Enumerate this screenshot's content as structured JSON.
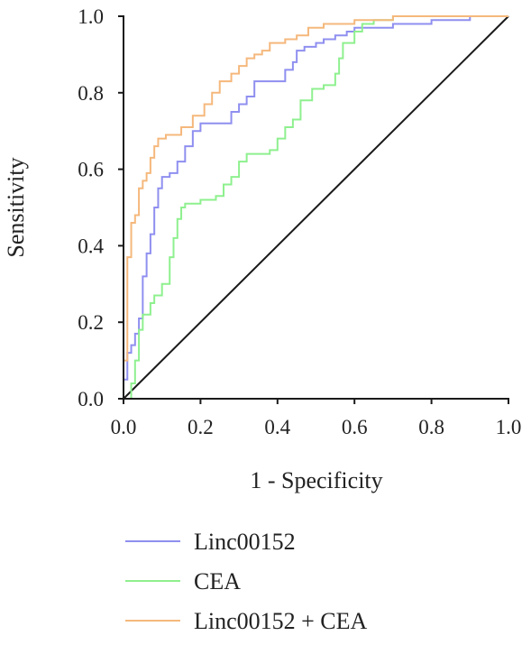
{
  "chart_data": {
    "type": "line",
    "title": "",
    "xlabel": "1 - Specificity",
    "ylabel": "Sensitivity",
    "xlim": [
      0,
      1
    ],
    "ylim": [
      0,
      1
    ],
    "x_ticks": [
      "0.0",
      "0.2",
      "0.4",
      "0.6",
      "0.8",
      "1.0"
    ],
    "y_ticks": [
      "0.0",
      "0.2",
      "0.4",
      "0.6",
      "0.8",
      "1.0"
    ],
    "grid": false,
    "legend_position": "bottom",
    "reference_line": [
      [
        0,
        0
      ],
      [
        1,
        1
      ]
    ],
    "series": [
      {
        "name": "Linc00152",
        "color": "#8f8ff0",
        "points": [
          [
            0,
            0
          ],
          [
            0,
            0.05
          ],
          [
            0.01,
            0.08
          ],
          [
            0.01,
            0.12
          ],
          [
            0.02,
            0.14
          ],
          [
            0.03,
            0.17
          ],
          [
            0.04,
            0.21
          ],
          [
            0.05,
            0.25
          ],
          [
            0.05,
            0.32
          ],
          [
            0.06,
            0.38
          ],
          [
            0.07,
            0.43
          ],
          [
            0.08,
            0.5
          ],
          [
            0.09,
            0.55
          ],
          [
            0.1,
            0.58
          ],
          [
            0.12,
            0.59
          ],
          [
            0.14,
            0.62
          ],
          [
            0.16,
            0.66
          ],
          [
            0.18,
            0.7
          ],
          [
            0.2,
            0.72
          ],
          [
            0.25,
            0.72
          ],
          [
            0.28,
            0.75
          ],
          [
            0.3,
            0.77
          ],
          [
            0.32,
            0.79
          ],
          [
            0.34,
            0.83
          ],
          [
            0.4,
            0.83
          ],
          [
            0.42,
            0.86
          ],
          [
            0.44,
            0.88
          ],
          [
            0.45,
            0.91
          ],
          [
            0.47,
            0.92
          ],
          [
            0.5,
            0.93
          ],
          [
            0.52,
            0.94
          ],
          [
            0.55,
            0.95
          ],
          [
            0.58,
            0.96
          ],
          [
            0.6,
            0.97
          ],
          [
            0.7,
            0.98
          ],
          [
            0.8,
            0.99
          ],
          [
            0.9,
            1.0
          ],
          [
            1,
            1
          ]
        ]
      },
      {
        "name": "CEA",
        "color": "#8ef08e",
        "points": [
          [
            0,
            0
          ],
          [
            0.02,
            0.04
          ],
          [
            0.03,
            0.1
          ],
          [
            0.04,
            0.18
          ],
          [
            0.05,
            0.22
          ],
          [
            0.07,
            0.25
          ],
          [
            0.08,
            0.27
          ],
          [
            0.1,
            0.3
          ],
          [
            0.12,
            0.37
          ],
          [
            0.13,
            0.42
          ],
          [
            0.14,
            0.47
          ],
          [
            0.15,
            0.5
          ],
          [
            0.16,
            0.51
          ],
          [
            0.2,
            0.52
          ],
          [
            0.24,
            0.53
          ],
          [
            0.26,
            0.56
          ],
          [
            0.28,
            0.58
          ],
          [
            0.3,
            0.62
          ],
          [
            0.32,
            0.64
          ],
          [
            0.38,
            0.65
          ],
          [
            0.4,
            0.68
          ],
          [
            0.42,
            0.71
          ],
          [
            0.44,
            0.73
          ],
          [
            0.46,
            0.78
          ],
          [
            0.49,
            0.81
          ],
          [
            0.52,
            0.82
          ],
          [
            0.55,
            0.85
          ],
          [
            0.56,
            0.89
          ],
          [
            0.57,
            0.93
          ],
          [
            0.6,
            0.96
          ],
          [
            0.62,
            0.98
          ],
          [
            0.65,
            0.99
          ],
          [
            0.7,
            1.0
          ],
          [
            1,
            1
          ]
        ]
      },
      {
        "name": "Linc00152 + CEA",
        "color": "#f5b87c",
        "points": [
          [
            0,
            0
          ],
          [
            0,
            0.1
          ],
          [
            0.01,
            0.2
          ],
          [
            0.01,
            0.37
          ],
          [
            0.02,
            0.46
          ],
          [
            0.03,
            0.48
          ],
          [
            0.04,
            0.55
          ],
          [
            0.05,
            0.57
          ],
          [
            0.06,
            0.59
          ],
          [
            0.07,
            0.63
          ],
          [
            0.08,
            0.66
          ],
          [
            0.09,
            0.68
          ],
          [
            0.11,
            0.69
          ],
          [
            0.15,
            0.71
          ],
          [
            0.18,
            0.74
          ],
          [
            0.21,
            0.77
          ],
          [
            0.23,
            0.8
          ],
          [
            0.25,
            0.83
          ],
          [
            0.28,
            0.85
          ],
          [
            0.3,
            0.87
          ],
          [
            0.32,
            0.89
          ],
          [
            0.34,
            0.9
          ],
          [
            0.36,
            0.91
          ],
          [
            0.38,
            0.93
          ],
          [
            0.42,
            0.94
          ],
          [
            0.45,
            0.95
          ],
          [
            0.48,
            0.97
          ],
          [
            0.52,
            0.98
          ],
          [
            0.6,
            0.99
          ],
          [
            0.7,
            1.0
          ],
          [
            1,
            1
          ]
        ]
      }
    ]
  }
}
